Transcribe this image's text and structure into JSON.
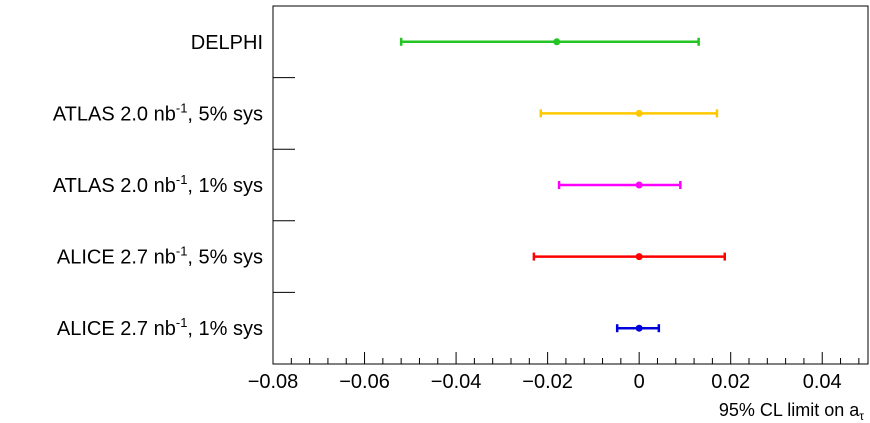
{
  "chart_data": {
    "type": "errorbar",
    "orientation": "horizontal",
    "xlabel": "95% CL limit on a",
    "xlabel_subscript": "τ",
    "xlim": [
      -0.08,
      0.05
    ],
    "xticks": [
      -0.08,
      -0.06,
      -0.04,
      -0.02,
      0,
      0.02,
      0.04
    ],
    "xtick_labels": [
      "−0.08",
      "−0.06",
      "−0.04",
      "−0.02",
      "0",
      "0.02",
      "0.04"
    ],
    "categories": [
      {
        "base": "DELPHI",
        "sup": "",
        "suffix": ""
      },
      {
        "base": "ATLAS 2.0 nb",
        "sup": "-1",
        "suffix": ", 5% sys"
      },
      {
        "base": "ATLAS 2.0 nb",
        "sup": "-1",
        "suffix": ", 1% sys"
      },
      {
        "base": "ALICE 2.7 nb",
        "sup": "-1",
        "suffix": ", 5% sys"
      },
      {
        "base": "ALICE 2.7 nb",
        "sup": "-1",
        "suffix": ", 1% sys"
      }
    ],
    "series": [
      {
        "category": "DELPHI",
        "center": -0.018,
        "low": -0.052,
        "high": 0.013,
        "color": "#22c522"
      },
      {
        "category": "ATLAS 2.0 nb-1, 5% sys",
        "center": 0.0,
        "low": -0.0215,
        "high": 0.017,
        "color": "#ffc800"
      },
      {
        "category": "ATLAS 2.0 nb-1, 1% sys",
        "center": 0.0,
        "low": -0.0175,
        "high": 0.009,
        "color": "#ff00ff"
      },
      {
        "category": "ALICE 2.7 nb-1, 5% sys",
        "center": 0.0,
        "low": -0.023,
        "high": 0.0187,
        "color": "#ff0000"
      },
      {
        "category": "ALICE 2.7 nb-1, 1% sys",
        "center": 0.0,
        "low": -0.0048,
        "high": 0.0043,
        "color": "#0000dd"
      }
    ]
  }
}
